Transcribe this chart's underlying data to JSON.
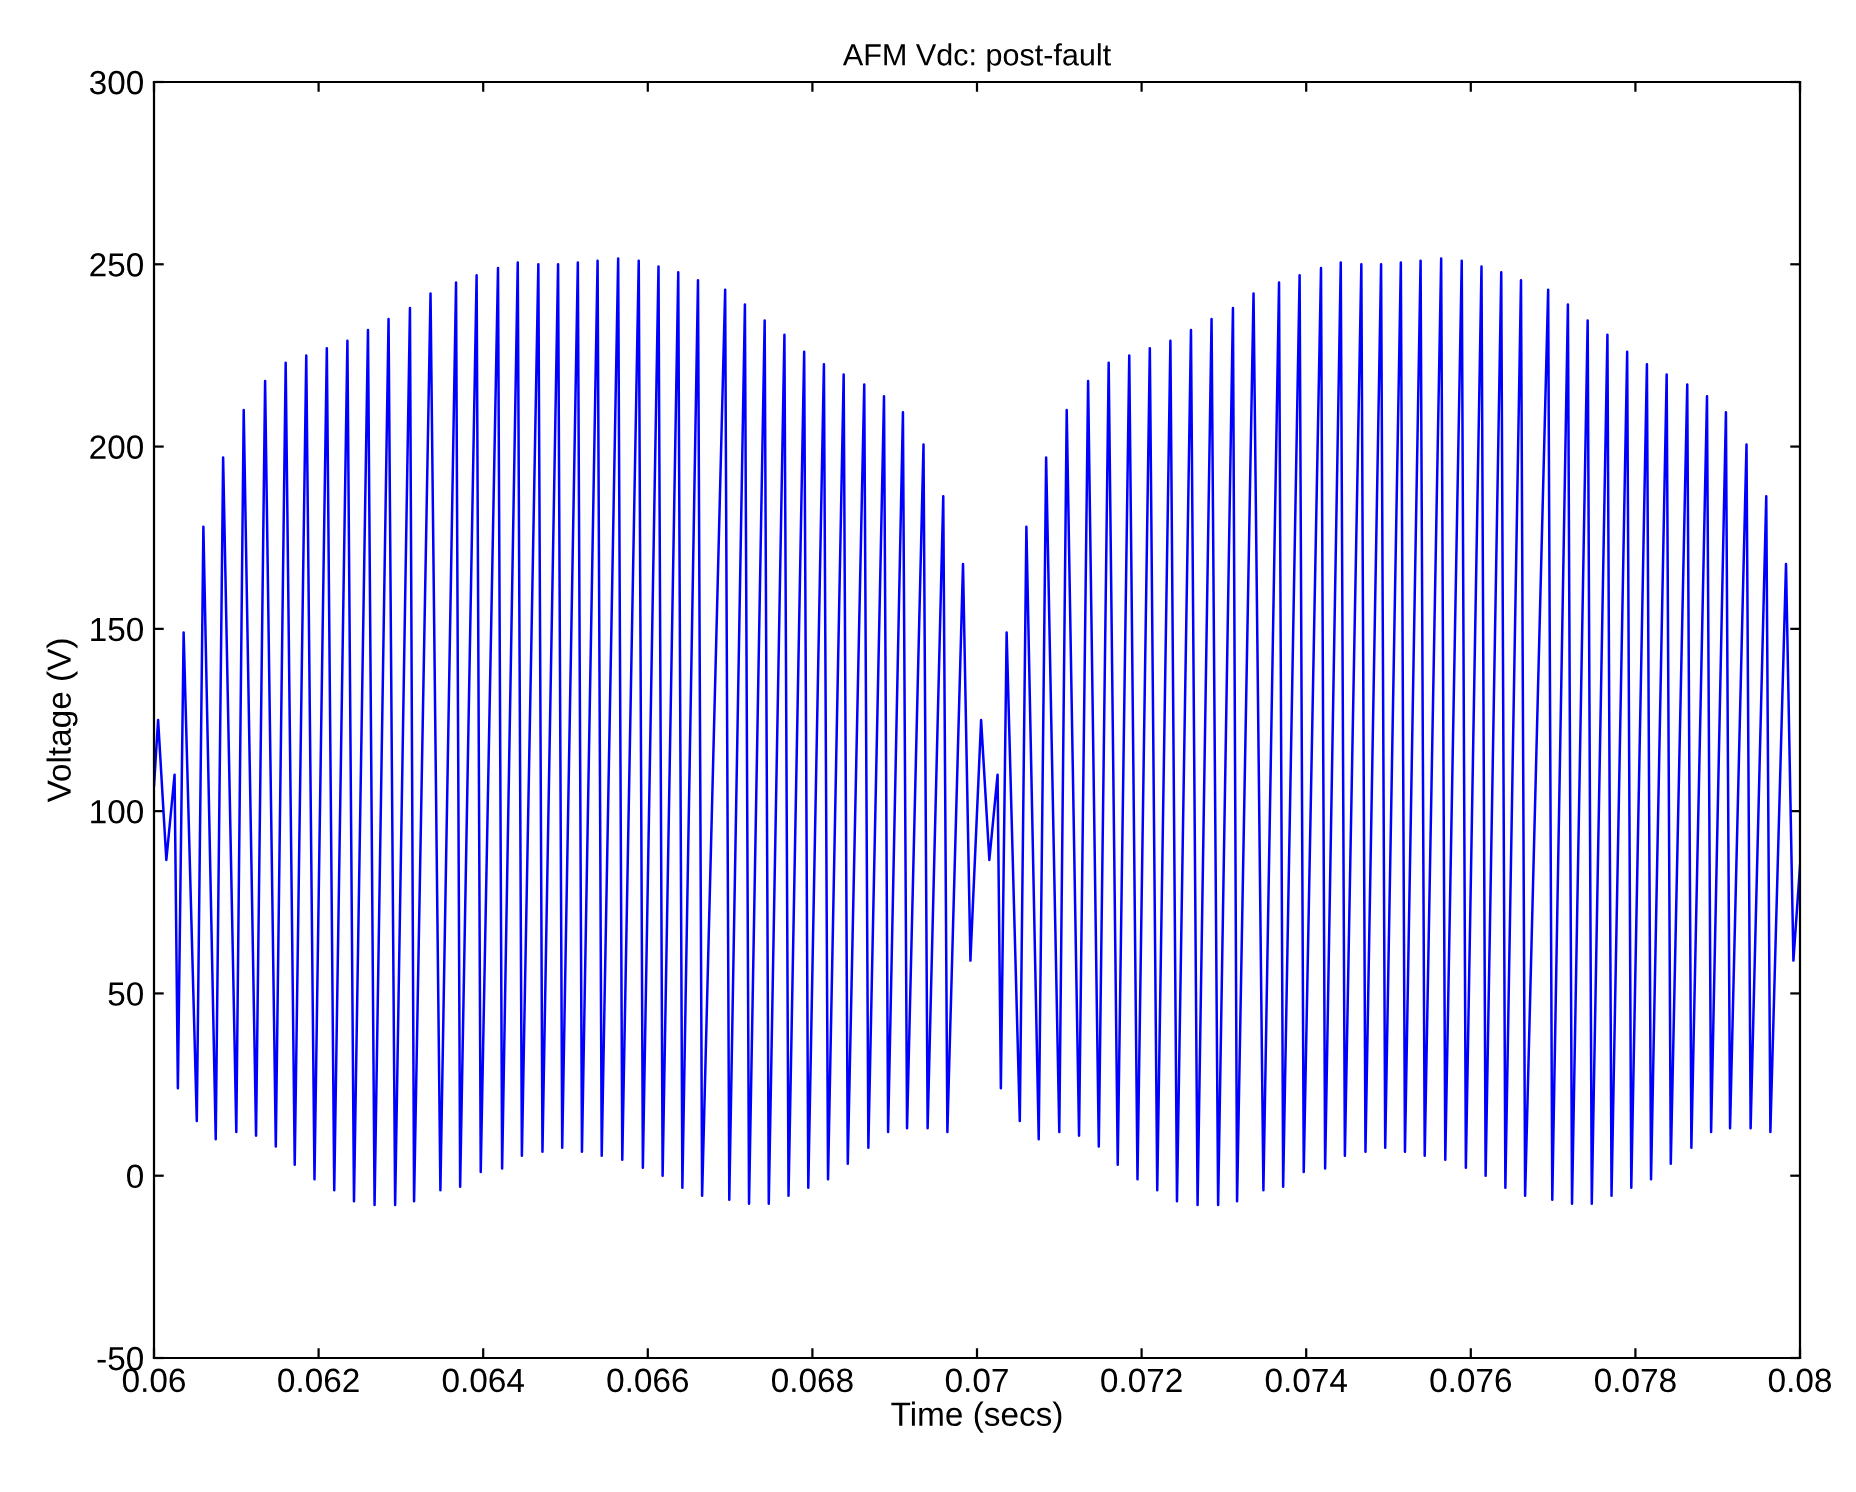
{
  "chart_data": {
    "type": "line",
    "title": "AFM Vdc: post-fault",
    "xlabel": "Time (secs)",
    "ylabel": "Voltage (V)",
    "xlim": [
      0.06,
      0.08
    ],
    "xticks": [
      0.06,
      0.062,
      0.064,
      0.066,
      0.068,
      0.07,
      0.072,
      0.074,
      0.076,
      0.078,
      0.08
    ],
    "ylim": [
      -50,
      300
    ],
    "yticks": [
      -50,
      0,
      50,
      100,
      150,
      200,
      250,
      300
    ],
    "grid": false,
    "marker": "none",
    "line_style": "solid",
    "series": [
      {
        "color": "#0000ff",
        "x": [
          0.06,
          0.06005,
          0.06015,
          0.06025,
          0.06029,
          0.06036,
          0.06052,
          0.0606,
          0.06075,
          0.06084,
          0.061,
          0.06109,
          0.06124,
          0.06135,
          0.06148,
          0.0616,
          0.06171,
          0.06185,
          0.06195,
          0.0621,
          0.06219,
          0.06235,
          0.06243,
          0.0626,
          0.06268,
          0.06285,
          0.06293,
          0.06311,
          0.06316,
          0.06336,
          0.06348,
          0.06367,
          0.06372,
          0.06392,
          0.06397,
          0.06418,
          0.06423,
          0.06442,
          0.06447,
          0.06467,
          0.06472,
          0.06491,
          0.06496,
          0.06515,
          0.0652,
          0.06539,
          0.06544,
          0.06564,
          0.06569,
          0.06589,
          0.06594,
          0.06613,
          0.06618,
          0.06637,
          0.06642,
          0.06661,
          0.06666,
          0.06694,
          0.06699,
          0.06718,
          0.06723,
          0.06742,
          0.06747,
          0.06766,
          0.06771,
          0.0679,
          0.06795,
          0.06814,
          0.06819,
          0.06838,
          0.06843,
          0.06863,
          0.06868,
          0.06887,
          0.06892,
          0.0691,
          0.06915,
          0.06935,
          0.0694,
          0.06959,
          0.06964,
          0.06983,
          0.06992,
          0.07005,
          0.07015,
          0.07025,
          0.07029,
          0.07036,
          0.07052,
          0.0706,
          0.07075,
          0.07084,
          0.071,
          0.07109,
          0.07124,
          0.07135,
          0.07148,
          0.0716,
          0.07171,
          0.07185,
          0.07195,
          0.0721,
          0.07219,
          0.07235,
          0.07243,
          0.0726,
          0.07268,
          0.07285,
          0.07293,
          0.07311,
          0.07316,
          0.07336,
          0.07348,
          0.07367,
          0.07372,
          0.07392,
          0.07397,
          0.07418,
          0.07423,
          0.07442,
          0.07447,
          0.07467,
          0.07472,
          0.07491,
          0.07496,
          0.07515,
          0.0752,
          0.07539,
          0.07544,
          0.07564,
          0.07569,
          0.07589,
          0.07594,
          0.07613,
          0.07618,
          0.07637,
          0.07642,
          0.07661,
          0.07666,
          0.07694,
          0.07699,
          0.07718,
          0.07723,
          0.07742,
          0.07747,
          0.07766,
          0.07771,
          0.0779,
          0.07795,
          0.07814,
          0.07819,
          0.07838,
          0.07843,
          0.07863,
          0.07868,
          0.07887,
          0.07892,
          0.0791,
          0.07915,
          0.07935,
          0.0794,
          0.07959,
          0.07964,
          0.07983,
          0.07992,
          0.08
        ],
        "values": [
          107,
          125,
          86.6,
          110,
          24,
          149,
          15,
          178,
          10,
          197,
          12,
          210,
          11,
          218,
          8,
          223,
          3,
          225,
          -1,
          227,
          -4,
          229,
          -7,
          232,
          -8,
          235,
          -8,
          238,
          -7,
          242,
          -4,
          245,
          -3,
          247,
          1,
          249,
          2,
          250.5,
          5.5,
          250,
          6.6,
          250,
          7.7,
          250.5,
          6.6,
          251,
          5.5,
          251.6,
          4.4,
          251,
          2.2,
          249.4,
          0,
          247.8,
          -3.3,
          245.6,
          -5.5,
          243,
          -6.6,
          239,
          -7.7,
          234.6,
          -7.7,
          230.7,
          -5.5,
          226,
          -3.3,
          222.6,
          -1,
          219.8,
          3.3,
          217,
          7.7,
          213.8,
          12,
          209.4,
          13,
          200.6,
          13,
          186.4,
          12,
          167.8,
          59,
          125,
          86.6,
          110,
          24,
          149,
          15,
          178,
          10,
          197,
          12,
          210,
          11,
          218,
          8,
          223,
          3,
          225,
          -1,
          227,
          -4,
          229,
          -7,
          232,
          -8,
          235,
          -8,
          238,
          -7,
          242,
          -4,
          245,
          -3,
          247,
          1,
          249,
          2,
          250.5,
          5.5,
          250,
          6.6,
          250,
          7.7,
          250.5,
          6.6,
          251,
          5.5,
          251.6,
          4.4,
          251,
          2.2,
          249.4,
          0,
          247.8,
          -3.3,
          245.6,
          -5.5,
          243,
          -6.6,
          239,
          -7.7,
          234.6,
          -7.7,
          230.7,
          -5.5,
          226,
          -3.3,
          222.6,
          -1,
          219.8,
          3.3,
          217,
          7.7,
          213.8,
          12,
          209.4,
          13,
          200.6,
          13,
          186.4,
          12,
          167.8,
          59,
          85
        ]
      }
    ]
  }
}
